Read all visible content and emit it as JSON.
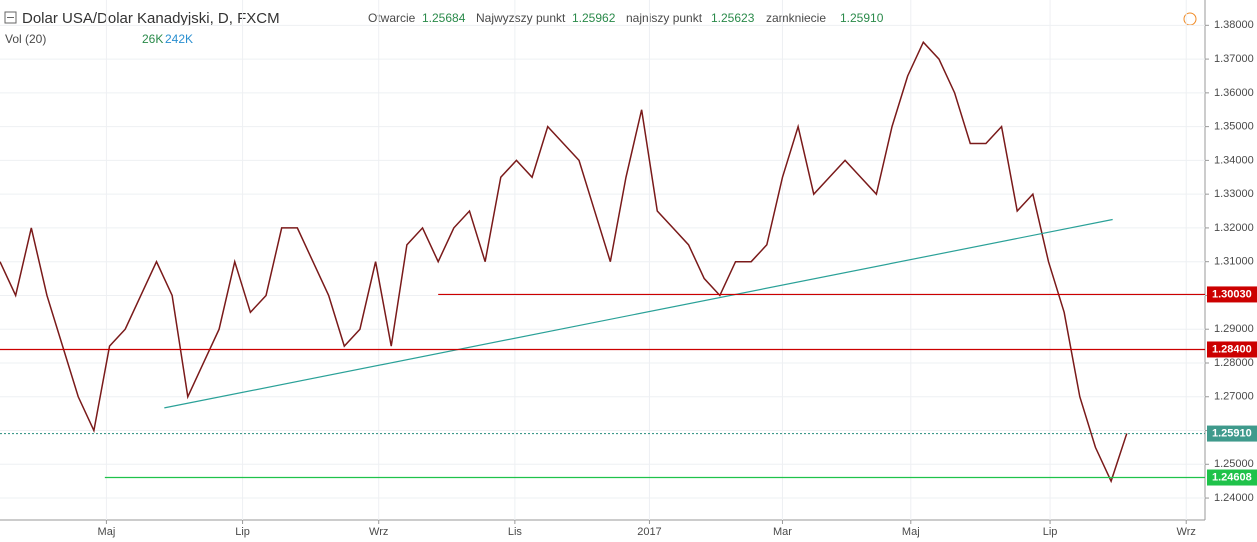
{
  "chart_data": {
    "type": "line",
    "title": "Dolar USA/Dolar Kanadyjski, D, FXCM",
    "ohlc_labels": [
      "Otwarcie",
      "Najwyzszy punkt",
      "najniszy punkt",
      "zamkniecie"
    ],
    "ohlc_values": [
      "1.25684",
      "1.25962",
      "1.25623",
      "1.25910"
    ],
    "volume_label": "Vol (20)",
    "volume_values": [
      "26K",
      "242K"
    ],
    "x": [
      0,
      1,
      2,
      3,
      4,
      5,
      6,
      7,
      8,
      9,
      10,
      11,
      12,
      13,
      14,
      15,
      16,
      17,
      18,
      19,
      20,
      21,
      22,
      23,
      24,
      25,
      26,
      27,
      28,
      29,
      30,
      31,
      32,
      33,
      34,
      35,
      36,
      37,
      38,
      39,
      40,
      41,
      42,
      43,
      44,
      45,
      46,
      47,
      48,
      49,
      50,
      51,
      52,
      53,
      54,
      55,
      56,
      57,
      58,
      59,
      60,
      61,
      62,
      63,
      64,
      65,
      66,
      67,
      68,
      69,
      70,
      71,
      72
    ],
    "series": [
      {
        "color": "#7a1a1a",
        "values": [
          1.31,
          1.3,
          1.32,
          1.3,
          1.285,
          1.27,
          1.26,
          1.285,
          1.29,
          1.3,
          1.31,
          1.3,
          1.27,
          1.28,
          1.29,
          1.31,
          1.295,
          1.3,
          1.32,
          1.32,
          1.31,
          1.3,
          1.285,
          1.29,
          1.31,
          1.285,
          1.315,
          1.32,
          1.31,
          1.32,
          1.325,
          1.31,
          1.335,
          1.34,
          1.335,
          1.35,
          1.345,
          1.34,
          1.325,
          1.31,
          1.335,
          1.355,
          1.325,
          1.32,
          1.315,
          1.305,
          1.3,
          1.31,
          1.31,
          1.315,
          1.335,
          1.35,
          1.33,
          1.335,
          1.34,
          1.335,
          1.33,
          1.35,
          1.365,
          1.375,
          1.37,
          1.36,
          1.345,
          1.345,
          1.35,
          1.325,
          1.33,
          1.31,
          1.295,
          1.27,
          1.255,
          1.245,
          1.2591
        ]
      }
    ],
    "xlim": [
      0,
      77
    ],
    "xticks": [
      {
        "value": 6.8,
        "label": "Maj"
      },
      {
        "value": 15.5,
        "label": "Lip"
      },
      {
        "value": 24.2,
        "label": "Wrz"
      },
      {
        "value": 32.9,
        "label": "Lis"
      },
      {
        "value": 41.5,
        "label": "2017"
      },
      {
        "value": 50,
        "label": "Mar"
      },
      {
        "value": 58.2,
        "label": "Maj"
      },
      {
        "value": 67.1,
        "label": "Lip"
      },
      {
        "value": 75.8,
        "label": "Wrz"
      }
    ],
    "ylim": [
      1.2335,
      1.3875
    ],
    "yticks": [
      {
        "value": 1.24,
        "label": "1.24000"
      },
      {
        "value": 1.25,
        "label": "1.25000"
      },
      {
        "value": 1.26,
        "label": "1.26000"
      },
      {
        "value": 1.27,
        "label": "1.27000"
      },
      {
        "value": 1.28,
        "label": "1.28000"
      },
      {
        "value": 1.29,
        "label": "1.29000"
      },
      {
        "value": 1.3,
        "label": "1.30000"
      },
      {
        "value": 1.31,
        "label": "1.31000"
      },
      {
        "value": 1.32,
        "label": "1.32000"
      },
      {
        "value": 1.33,
        "label": "1.33000"
      },
      {
        "value": 1.34,
        "label": "1.34000"
      },
      {
        "value": 1.35,
        "label": "1.35000"
      },
      {
        "value": 1.36,
        "label": "1.36000"
      },
      {
        "value": 1.37,
        "label": "1.37000"
      },
      {
        "value": 1.38,
        "label": "1.38000"
      }
    ],
    "grid": true,
    "levels": [
      {
        "value": 1.3003,
        "label": "1.30030",
        "color": "#cc0000",
        "from": 28
      },
      {
        "value": 1.284,
        "label": "1.28400",
        "color": "#cc0000",
        "from": 0
      },
      {
        "value": 1.2591,
        "label": "1.25910",
        "color": "#3f9a8c",
        "from": 0,
        "dashed": true
      },
      {
        "value": 1.24608,
        "label": "1.24608",
        "color": "#1fc24a",
        "from": 6.7
      }
    ],
    "trendline": {
      "color": "#2aa198",
      "x": [
        10.5,
        71.1
      ],
      "values": [
        1.2667,
        1.3225
      ]
    }
  }
}
